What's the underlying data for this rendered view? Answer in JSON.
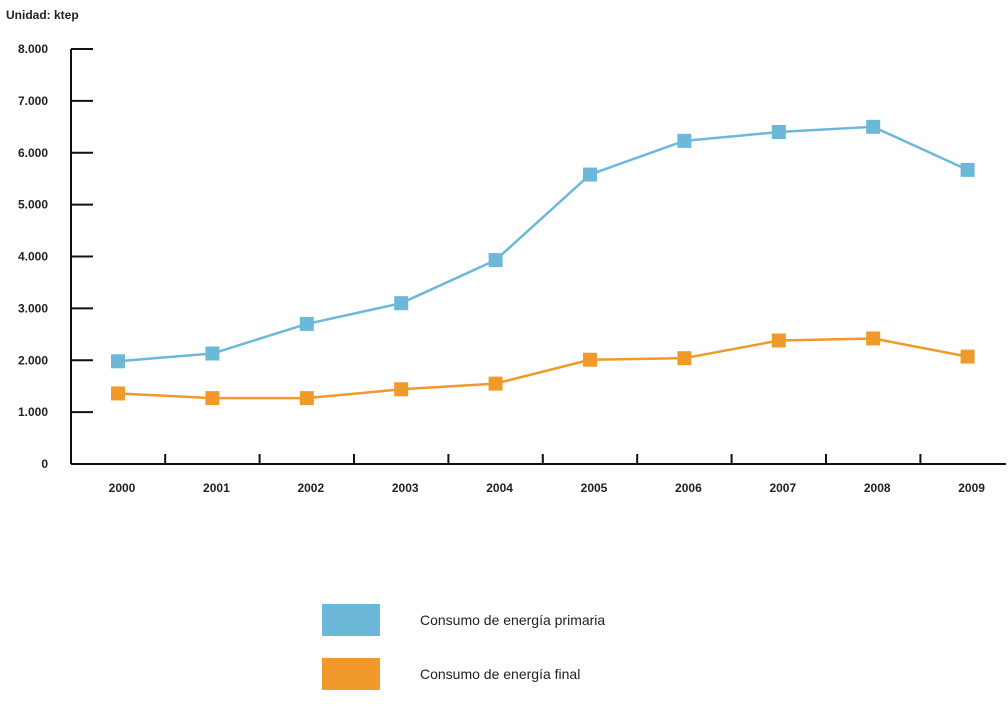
{
  "chart_data": {
    "type": "line",
    "unit_label": "Unidad: ktep",
    "categories": [
      "2000",
      "2001",
      "2002",
      "2003",
      "2004",
      "2005",
      "2006",
      "2007",
      "2008",
      "2009"
    ],
    "y_ticks": [
      0,
      1000,
      2000,
      3000,
      4000,
      5000,
      6000,
      7000,
      8000
    ],
    "y_tick_labels": [
      "0",
      "1.000",
      "2.000",
      "3.000",
      "4.000",
      "5.000",
      "6.000",
      "7.000",
      "8.000"
    ],
    "ylim": [
      0,
      8000
    ],
    "grid": false,
    "legend_position": "bottom-center",
    "series": [
      {
        "name": "Consumo de energía primaria",
        "color": "#6cb8d8",
        "values": [
          1980,
          2130,
          2700,
          3100,
          3930,
          5580,
          6230,
          6400,
          6500,
          5670
        ]
      },
      {
        "name": "Consumo de energía final",
        "color": "#ef9a2a",
        "values": [
          1360,
          1270,
          1270,
          1440,
          1550,
          2010,
          2040,
          2380,
          2420,
          2070
        ]
      }
    ]
  }
}
